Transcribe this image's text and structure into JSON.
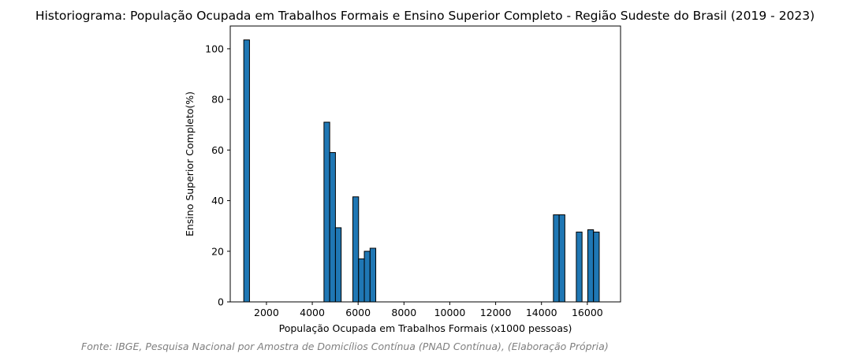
{
  "chart_data": {
    "type": "bar",
    "title": "Historiograma: População Ocupada em Trabalhos Formais e Ensino Superior Completo - Região Sudeste do Brasil (2019 - 2023)",
    "xlabel": "População Ocupada em Trabalhos Formais (x1000 pessoas)",
    "ylabel": "Ensino Superior Completo(%)",
    "source": "Fonte: IBGE, Pesquisa Nacional por Amostra de Domicílios Contínua (PNAD Contínua), (Elaboração Própria)",
    "xlim": [
      420,
      17450
    ],
    "ylim": [
      0,
      109
    ],
    "xticks": [
      2000,
      4000,
      6000,
      8000,
      10000,
      12000,
      14000,
      16000
    ],
    "yticks": [
      0,
      20,
      40,
      60,
      80,
      100
    ],
    "grid": false,
    "bar_color": "#1f77b4",
    "edge_color": "#000000",
    "bins": [
      {
        "x0": 1010,
        "x1": 1260,
        "value": 103.5
      },
      {
        "x0": 4510,
        "x1": 4760,
        "value": 71.0
      },
      {
        "x0": 4760,
        "x1": 5010,
        "value": 59.0
      },
      {
        "x0": 5010,
        "x1": 5260,
        "value": 29.3
      },
      {
        "x0": 5770,
        "x1": 6020,
        "value": 41.5
      },
      {
        "x0": 6020,
        "x1": 6270,
        "value": 17.0
      },
      {
        "x0": 6270,
        "x1": 6520,
        "value": 20.0
      },
      {
        "x0": 6520,
        "x1": 6770,
        "value": 21.2
      },
      {
        "x0": 14520,
        "x1": 14770,
        "value": 34.4
      },
      {
        "x0": 14770,
        "x1": 15020,
        "value": 34.4
      },
      {
        "x0": 15520,
        "x1": 15770,
        "value": 27.6
      },
      {
        "x0": 16020,
        "x1": 16270,
        "value": 28.5
      },
      {
        "x0": 16270,
        "x1": 16520,
        "value": 27.6
      }
    ]
  }
}
